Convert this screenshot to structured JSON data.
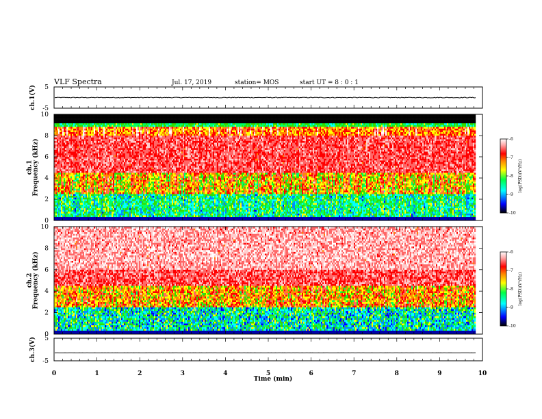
{
  "header": {
    "title": "VLF Spectra",
    "date": "Jul. 17, 2019",
    "station": "station= MOS",
    "start": "start UT =  8 : 0 : 1"
  },
  "chart_data": {
    "type": "heatmap",
    "x_axis": {
      "label": "Time (min)",
      "range": [
        0,
        10
      ],
      "ticks": [
        "0",
        "1",
        "2",
        "3",
        "4",
        "5",
        "6",
        "7",
        "8",
        "9",
        "10"
      ],
      "data_end": 9.85
    },
    "panels": [
      {
        "name": "ch1-waveform",
        "kind": "line",
        "ylabel": "ch.1(V)",
        "ylim": [
          -5,
          5
        ],
        "yticks": [
          "5",
          "-5"
        ],
        "level": 0
      },
      {
        "name": "ch1-spectrogram",
        "kind": "heatmap",
        "ylabel": "ch.1\nFrequency (kHz)",
        "ylim": [
          0,
          10
        ],
        "yticks": [
          "10",
          "8",
          "6",
          "4",
          "2",
          "0"
        ],
        "colorbar": {
          "label": "log(PSD)(V²/Hz)",
          "range": [
            -10,
            -6
          ],
          "ticks": [
            "-6",
            "-7",
            "-8",
            "-9",
            "-10"
          ]
        },
        "features": {
          "black_band_khz": [
            9.2,
            10
          ],
          "cutoff_khz": 8.9,
          "red_band_khz": [
            4.5,
            8
          ]
        }
      },
      {
        "name": "ch2-spectrogram",
        "kind": "heatmap",
        "ylabel": "ch.2\nFrequency (kHz)",
        "ylim": [
          0,
          10
        ],
        "yticks": [
          "10",
          "8",
          "6",
          "4",
          "2",
          "0"
        ],
        "colorbar": {
          "label": "log(PSD)(V²/Hz)",
          "range": [
            -10,
            -6
          ],
          "ticks": [
            "-6",
            "-7",
            "-8",
            "-9",
            "-10"
          ]
        },
        "features": {
          "noise_top_khz": 4.5
        }
      },
      {
        "name": "ch3-waveform",
        "kind": "line",
        "ylabel": "ch.3(V)",
        "ylim": [
          -5,
          5
        ],
        "yticks": [
          "5",
          "-5"
        ],
        "level": -1.5
      }
    ],
    "colormap": [
      "#000000",
      "#0000aa",
      "#0000ff",
      "#0088ff",
      "#00ffff",
      "#00ff66",
      "#33dd00",
      "#ffff00",
      "#ff8800",
      "#ff0000",
      "#ff6666",
      "#ffcccc",
      "#ffffff"
    ]
  }
}
